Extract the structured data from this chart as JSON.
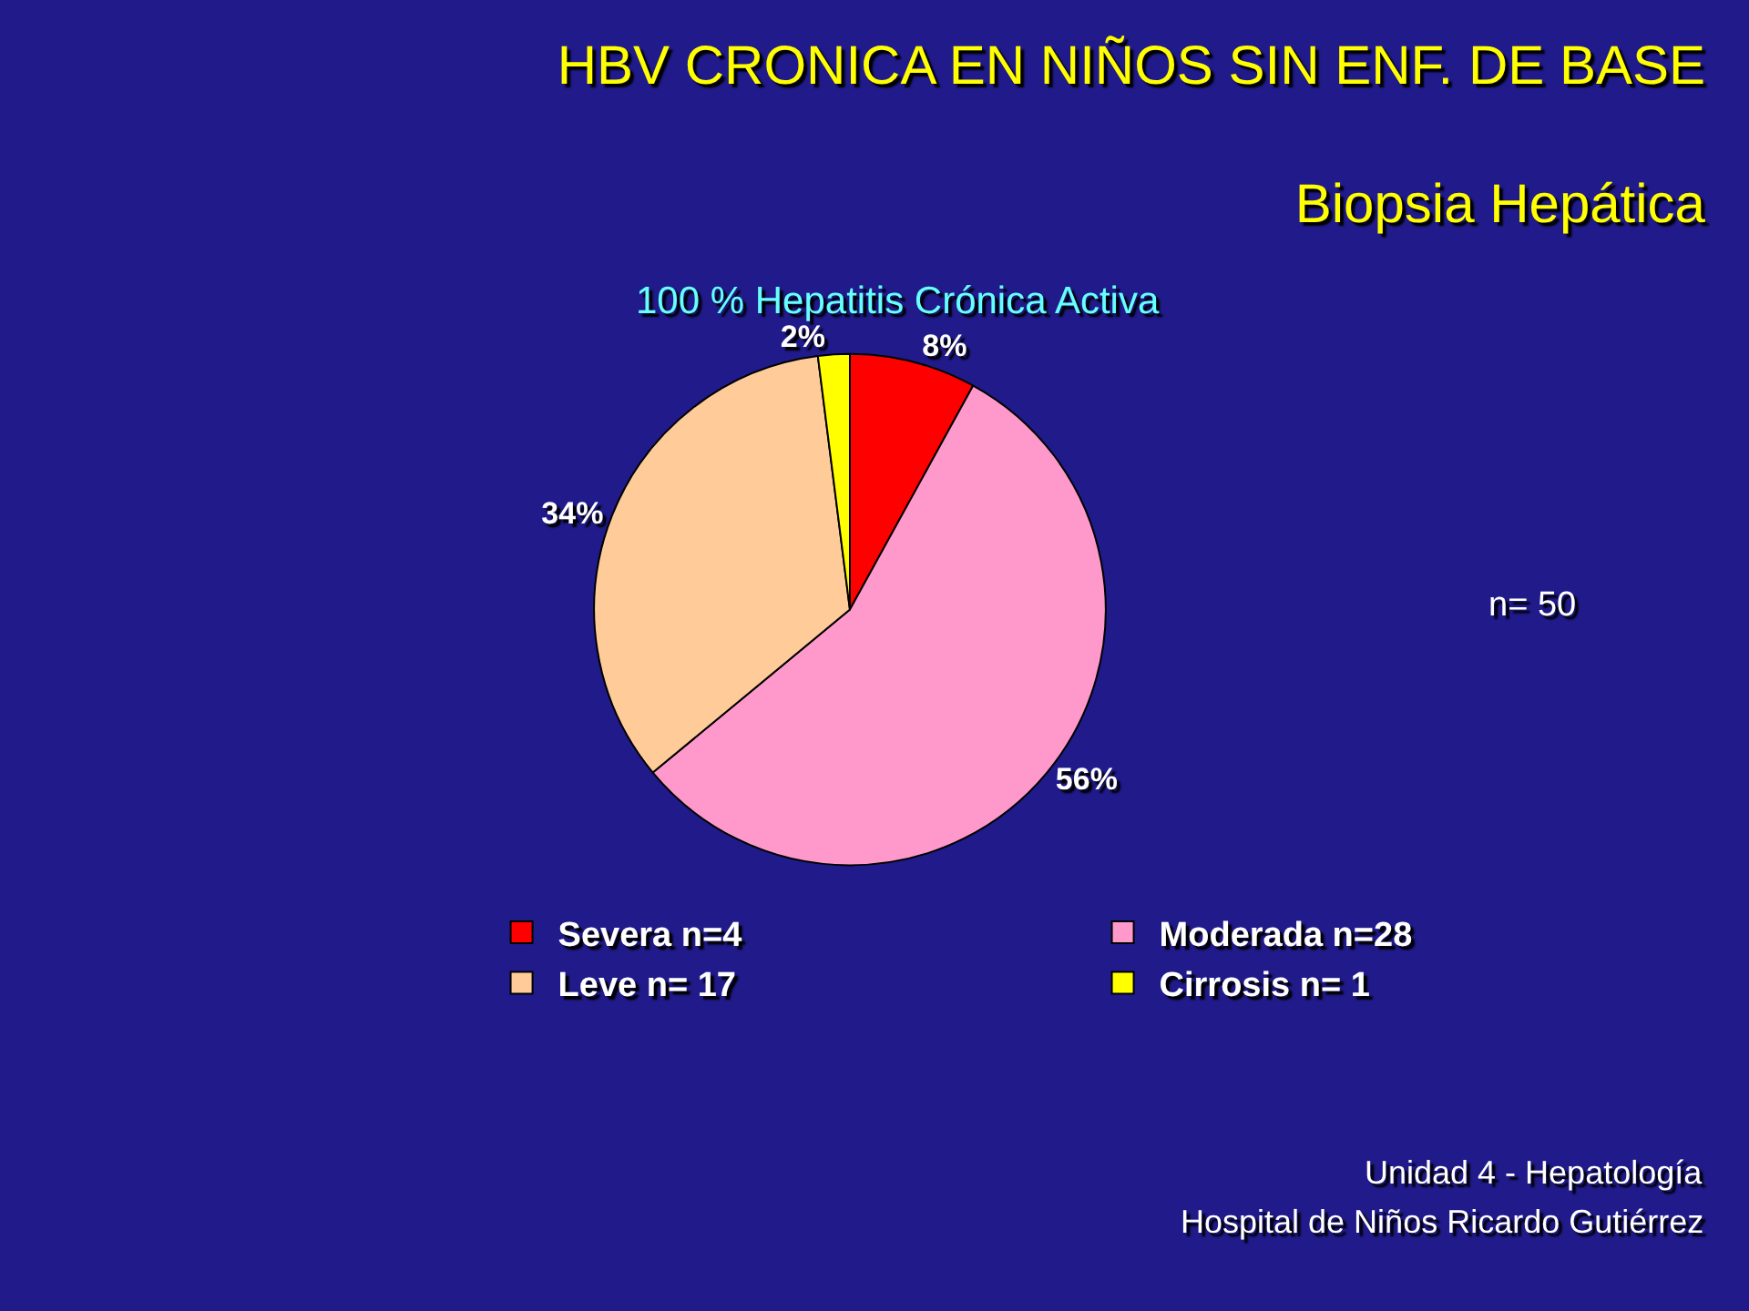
{
  "chart_data": {
    "type": "pie",
    "title": "HBV CRONICA EN NIÑOS SIN ENF. DE BASE",
    "subtitle": "Biopsia Hepática",
    "categories": [
      "Severa n=4",
      "Moderada n=28",
      "Leve n= 17",
      "Cirrosis n= 1"
    ],
    "values": [
      8,
      56,
      34,
      2
    ],
    "value_labels": [
      "8%",
      "56%",
      "34%",
      "2%"
    ],
    "colors": [
      "#ff0000",
      "#ff99cc",
      "#ffcc99",
      "#ffff00"
    ],
    "legend": "bottom",
    "annotations": [
      "100 % Hepatitis Crónica Activa",
      "n= 50",
      "Unidad 4 - Hepatología",
      "Hospital de Niños Ricardo Gutiérrez"
    ]
  }
}
